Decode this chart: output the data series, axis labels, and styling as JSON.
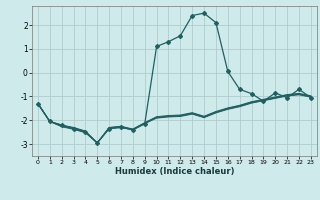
{
  "x": [
    0,
    1,
    2,
    3,
    4,
    5,
    6,
    7,
    8,
    9,
    10,
    11,
    12,
    13,
    14,
    15,
    16,
    17,
    18,
    19,
    20,
    21,
    22,
    23
  ],
  "main": [
    -1.3,
    -2.05,
    -2.2,
    -2.35,
    -2.5,
    -2.95,
    -2.35,
    -2.3,
    -2.4,
    -2.15,
    1.1,
    1.3,
    1.55,
    2.4,
    2.5,
    2.1,
    0.05,
    -0.7,
    -0.88,
    -1.2,
    -0.85,
    -1.05,
    -0.7,
    -1.05
  ],
  "line1": [
    -1.3,
    -2.05,
    -2.2,
    -2.3,
    -2.45,
    -2.95,
    -2.3,
    -2.25,
    -2.37,
    -2.1,
    -1.85,
    -1.8,
    -1.78,
    -1.68,
    -1.83,
    -1.63,
    -1.48,
    -1.37,
    -1.22,
    -1.12,
    -1.02,
    -0.92,
    -0.87,
    -0.97
  ],
  "line2": [
    -1.3,
    -2.05,
    -2.22,
    -2.32,
    -2.47,
    -2.95,
    -2.31,
    -2.27,
    -2.38,
    -2.11,
    -1.87,
    -1.82,
    -1.8,
    -1.7,
    -1.85,
    -1.65,
    -1.5,
    -1.39,
    -1.24,
    -1.14,
    -1.04,
    -0.94,
    -0.89,
    -0.99
  ],
  "line3": [
    -1.3,
    -2.05,
    -2.25,
    -2.35,
    -2.5,
    -2.95,
    -2.33,
    -2.28,
    -2.39,
    -2.12,
    -1.89,
    -1.84,
    -1.82,
    -1.72,
    -1.87,
    -1.67,
    -1.52,
    -1.41,
    -1.26,
    -1.16,
    -1.06,
    -0.96,
    -0.91,
    -1.01
  ],
  "line4": [
    -1.3,
    -2.05,
    -2.27,
    -2.38,
    -2.52,
    -2.95,
    -2.35,
    -2.3,
    -2.4,
    -2.14,
    -1.91,
    -1.86,
    -1.84,
    -1.74,
    -1.89,
    -1.69,
    -1.54,
    -1.43,
    -1.28,
    -1.18,
    -1.08,
    -0.98,
    -0.93,
    -1.03
  ],
  "bg_color": "#ceeaea",
  "grid_color": "#b0cccc",
  "line_color": "#206060",
  "xlabel": "Humidex (Indice chaleur)",
  "ylim": [
    -3.5,
    2.8
  ],
  "xlim": [
    -0.5,
    23.5
  ],
  "yticks": [
    -3,
    -2,
    -1,
    0,
    1,
    2
  ],
  "xticks": [
    0,
    1,
    2,
    3,
    4,
    5,
    6,
    7,
    8,
    9,
    10,
    11,
    12,
    13,
    14,
    15,
    16,
    17,
    18,
    19,
    20,
    21,
    22,
    23
  ]
}
